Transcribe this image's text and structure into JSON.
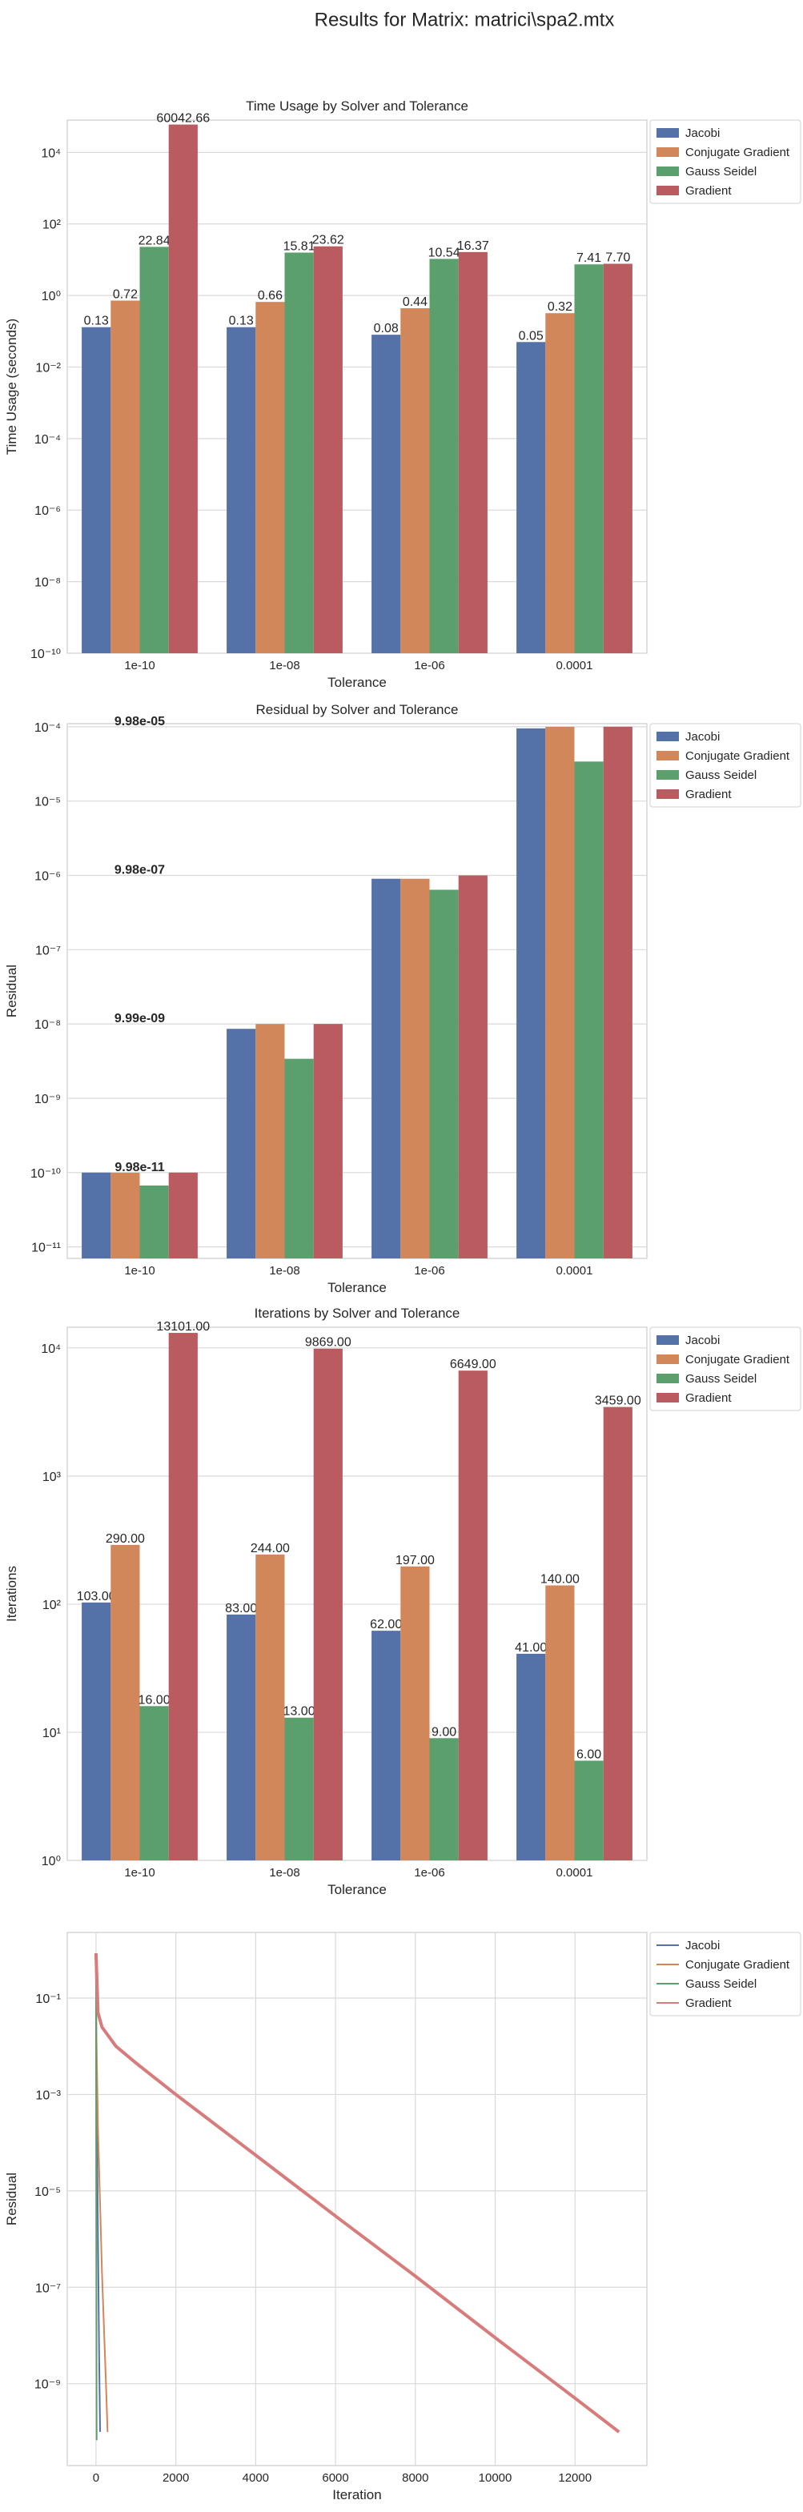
{
  "suptitle": "Results for Matrix: matrici\\spa2.mtx",
  "chart_data": [
    {
      "type": "bar",
      "title": "Time Usage by Solver and Tolerance",
      "xlabel": "Tolerance",
      "ylabel": "Time Usage (seconds)",
      "log_y": true,
      "grid": "y",
      "legend": "outside upper right",
      "categories": [
        "1e-10",
        "1e-08",
        "1e-06",
        "0.0001"
      ],
      "ylim": [
        1e-10,
        80000
      ],
      "yticks": [
        {
          "value": 1e-10,
          "label": "10⁻¹⁰"
        },
        {
          "value": 1e-08,
          "label": "10⁻⁸"
        },
        {
          "value": 1e-06,
          "label": "10⁻⁶"
        },
        {
          "value": 0.0001,
          "label": "10⁻⁴"
        },
        {
          "value": 0.01,
          "label": "10⁻²"
        },
        {
          "value": 1,
          "label": "10⁰"
        },
        {
          "value": 100,
          "label": "10²"
        },
        {
          "value": 10000,
          "label": "10⁴"
        }
      ],
      "series": [
        {
          "name": "Jacobi",
          "color": "#5471a8",
          "values": [
            0.13,
            0.13,
            0.08,
            0.05
          ],
          "value_labels": [
            "0.13",
            "0.13",
            "0.08",
            "0.05"
          ]
        },
        {
          "name": "Conjugate Gradient",
          "color": "#d2875b",
          "values": [
            0.72,
            0.66,
            0.44,
            0.32
          ],
          "value_labels": [
            "0.72",
            "0.66",
            "0.44",
            "0.32"
          ]
        },
        {
          "name": "Gauss Seidel",
          "color": "#5b9f6c",
          "values": [
            22.84,
            15.81,
            10.54,
            7.41
          ],
          "value_labels": [
            "22.84",
            "15.81",
            "10.54",
            "7.41"
          ]
        },
        {
          "name": "Gradient",
          "color": "#b95b5f",
          "values": [
            60042.66,
            23.62,
            16.37,
            7.7
          ],
          "value_labels": [
            "60042.66",
            "23.62",
            "16.37",
            "7.70"
          ]
        }
      ]
    },
    {
      "type": "bar",
      "title": "Residual by Solver and Tolerance",
      "xlabel": "Tolerance",
      "ylabel": "Residual",
      "log_y": true,
      "grid": "y",
      "legend": "outside upper right",
      "categories": [
        "1e-10",
        "1e-08",
        "1e-06",
        "0.0001"
      ],
      "ylim": [
        7e-12,
        0.00011
      ],
      "yticks": [
        {
          "value": 1e-11,
          "label": "10⁻¹¹"
        },
        {
          "value": 1e-10,
          "label": "10⁻¹⁰"
        },
        {
          "value": 1e-09,
          "label": "10⁻⁹"
        },
        {
          "value": 1e-08,
          "label": "10⁻⁸"
        },
        {
          "value": 1e-07,
          "label": "10⁻⁷"
        },
        {
          "value": 1e-06,
          "label": "10⁻⁶"
        },
        {
          "value": 1e-05,
          "label": "10⁻⁵"
        },
        {
          "value": 0.0001,
          "label": "10⁻⁴"
        }
      ],
      "annotations": [
        {
          "text": "9.98e-05",
          "y": 9.98e-05
        },
        {
          "text": "9.98e-07",
          "y": 9.98e-07
        },
        {
          "text": "9.99e-09",
          "y": 9.99e-09
        },
        {
          "text": "9.98e-11",
          "y": 9.98e-11
        }
      ],
      "series": [
        {
          "name": "Jacobi",
          "color": "#5471a8",
          "values": [
            1e-10,
            8.6e-09,
            9e-07,
            9.5e-05
          ]
        },
        {
          "name": "Conjugate Gradient",
          "color": "#d2875b",
          "values": [
            9.98e-11,
            9.99e-09,
            9e-07,
            9.98e-05
          ]
        },
        {
          "name": "Gauss Seidel",
          "color": "#5b9f6c",
          "values": [
            6.7e-11,
            3.4e-09,
            6.4e-07,
            3.4e-05
          ]
        },
        {
          "name": "Gradient",
          "color": "#b95b5f",
          "values": [
            1e-10,
            1e-08,
            9.98e-07,
            0.0001
          ]
        }
      ]
    },
    {
      "type": "bar",
      "title": "Iterations by Solver and Tolerance",
      "xlabel": "Tolerance",
      "ylabel": "Iterations",
      "log_y": true,
      "grid": "y",
      "legend": "outside upper right",
      "categories": [
        "1e-10",
        "1e-08",
        "1e-06",
        "0.0001"
      ],
      "ylim": [
        1,
        14500
      ],
      "yticks": [
        {
          "value": 1,
          "label": "10⁰"
        },
        {
          "value": 10,
          "label": "10¹"
        },
        {
          "value": 100,
          "label": "10²"
        },
        {
          "value": 1000,
          "label": "10³"
        },
        {
          "value": 10000,
          "label": "10⁴"
        }
      ],
      "series": [
        {
          "name": "Jacobi",
          "color": "#5471a8",
          "values": [
            103,
            83,
            62,
            41
          ],
          "value_labels": [
            "103.00",
            "83.00",
            "62.00",
            "41.00"
          ]
        },
        {
          "name": "Conjugate Gradient",
          "color": "#d2875b",
          "values": [
            290,
            244,
            197,
            140
          ],
          "value_labels": [
            "290.00",
            "244.00",
            "197.00",
            "140.00"
          ]
        },
        {
          "name": "Gauss Seidel",
          "color": "#5b9f6c",
          "values": [
            16,
            13,
            9,
            6
          ],
          "value_labels": [
            "16.00",
            "13.00",
            "9.00",
            "6.00"
          ]
        },
        {
          "name": "Gradient",
          "color": "#b95b5f",
          "values": [
            13101,
            9869,
            6649,
            3459
          ],
          "value_labels": [
            "13101.00",
            "9869.00",
            "6649.00",
            "3459.00"
          ]
        }
      ]
    },
    {
      "type": "line",
      "xlabel": "Iteration",
      "ylabel": "Residual",
      "log_y": true,
      "grid": "both",
      "legend": "outside upper right",
      "xlim": [
        -720,
        13800
      ],
      "xticks": [
        0,
        2000,
        4000,
        6000,
        8000,
        10000,
        12000
      ],
      "ylim": [
        2e-11,
        2.3
      ],
      "yticks": [
        {
          "value": 1e-09,
          "label": "10⁻⁹"
        },
        {
          "value": 1e-07,
          "label": "10⁻⁷"
        },
        {
          "value": 1e-05,
          "label": "10⁻⁵"
        },
        {
          "value": 0.001,
          "label": "10⁻³"
        },
        {
          "value": 0.1,
          "label": "10⁻¹"
        }
      ],
      "series": [
        {
          "name": "Jacobi",
          "color": "#5471a8",
          "x": [
            0,
            5,
            20,
            50,
            80,
            103
          ],
          "values": [
            0.5,
            0.03,
            0.0005,
            1e-06,
            3e-09,
            1e-10
          ]
        },
        {
          "name": "Conjugate Gradient",
          "color": "#d2875b",
          "x": [
            0,
            10,
            50,
            150,
            250,
            290
          ],
          "values": [
            0.85,
            0.02,
            0.0002,
            2e-07,
            1e-09,
            9.98e-11
          ]
        },
        {
          "name": "Gauss Seidel",
          "color": "#5b9f6c",
          "x": [
            0,
            2,
            5,
            10,
            16
          ],
          "values": [
            0.6,
            0.03,
            0.0001,
            1e-07,
            6.7e-11
          ]
        },
        {
          "name": "Gradient",
          "color": "#d77b7b",
          "x": [
            0,
            50,
            150,
            500,
            1000,
            2000,
            4000,
            6000,
            8000,
            10000,
            12000,
            13101
          ],
          "values": [
            0.85,
            0.05,
            0.025,
            0.01,
            0.0045,
            0.001,
            5.5e-05,
            3e-06,
            1.7e-07,
            9e-09,
            5e-10,
            9.97e-11
          ]
        }
      ]
    }
  ]
}
